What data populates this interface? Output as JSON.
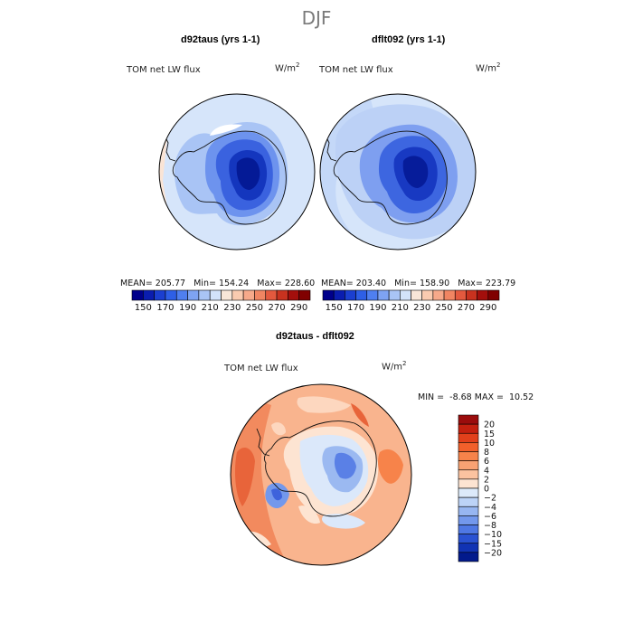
{
  "page_title": "DJF",
  "chart_data": [
    {
      "type": "heatmap",
      "projection": "south-polar-stereographic",
      "title": "d92taus (yrs 1-1)",
      "field": "TOM net LW flux",
      "units": "W/m",
      "units_exp": "2",
      "stats": {
        "mean": "205.77",
        "min": "154.24",
        "max": "228.60"
      },
      "stats_labels": {
        "mean": "MEAN=",
        "min": "Min=",
        "max": "Max="
      },
      "colorbar": {
        "levels": [
          150,
          160,
          170,
          180,
          190,
          200,
          210,
          220,
          230,
          240,
          250,
          260,
          270,
          280,
          290
        ],
        "tick_labels": [
          "150",
          "170",
          "190",
          "210",
          "230",
          "250",
          "270",
          "290"
        ],
        "colors": [
          "#00008b",
          "#0a1db0",
          "#1b3fd0",
          "#2e5fe6",
          "#4f7ff0",
          "#7ea3f2",
          "#a9c4f5",
          "#d3e3fa",
          "#f8e6d8",
          "#f9cbb0",
          "#f6a98a",
          "#f08562",
          "#e3593e",
          "#c8321f",
          "#a30f0c",
          "#800000"
        ]
      }
    },
    {
      "type": "heatmap",
      "projection": "south-polar-stereographic",
      "title": "dflt092 (yrs 1-1)",
      "field": "TOM net LW flux",
      "units": "W/m",
      "units_exp": "2",
      "stats": {
        "mean": "203.40",
        "min": "158.90",
        "max": "223.79"
      },
      "stats_labels": {
        "mean": "MEAN=",
        "min": "Min=",
        "max": "Max="
      },
      "colorbar": {
        "levels": [
          150,
          160,
          170,
          180,
          190,
          200,
          210,
          220,
          230,
          240,
          250,
          260,
          270,
          280,
          290
        ],
        "tick_labels": [
          "150",
          "170",
          "190",
          "210",
          "230",
          "250",
          "270",
          "290"
        ],
        "colors": [
          "#00008b",
          "#0a1db0",
          "#1b3fd0",
          "#2e5fe6",
          "#4f7ff0",
          "#7ea3f2",
          "#a9c4f5",
          "#d3e3fa",
          "#f8e6d8",
          "#f9cbb0",
          "#f6a98a",
          "#f08562",
          "#e3593e",
          "#c8321f",
          "#a30f0c",
          "#800000"
        ]
      }
    },
    {
      "type": "heatmap",
      "projection": "south-polar-stereographic",
      "title": "d92taus - dflt092",
      "field": "TOM net LW flux",
      "units": "W/m",
      "units_exp": "2",
      "stats": {
        "min": "-8.68",
        "max": "10.52"
      },
      "stats_labels": {
        "min": "MIN =",
        "max": "MAX ="
      },
      "colorbar": {
        "levels": [
          20,
          15,
          10,
          8,
          6,
          4,
          2,
          0,
          -2,
          -4,
          -6,
          -8,
          -10,
          -15,
          -20
        ],
        "tick_labels": [
          "20",
          "15",
          "10",
          "8",
          "6",
          "4",
          "2",
          "0",
          "−2",
          "−4",
          "−6",
          "−8",
          "−10",
          "−15",
          "−20"
        ],
        "colors": [
          "#9b0c0c",
          "#c4200f",
          "#e2401b",
          "#f2602b",
          "#f7834a",
          "#f9a273",
          "#fbc3a0",
          "#fde4d2",
          "#ddeafa",
          "#bcd3f7",
          "#97b6f1",
          "#7398ec",
          "#4f78e4",
          "#2a52d2",
          "#1133b4",
          "#021a8c"
        ]
      }
    }
  ]
}
